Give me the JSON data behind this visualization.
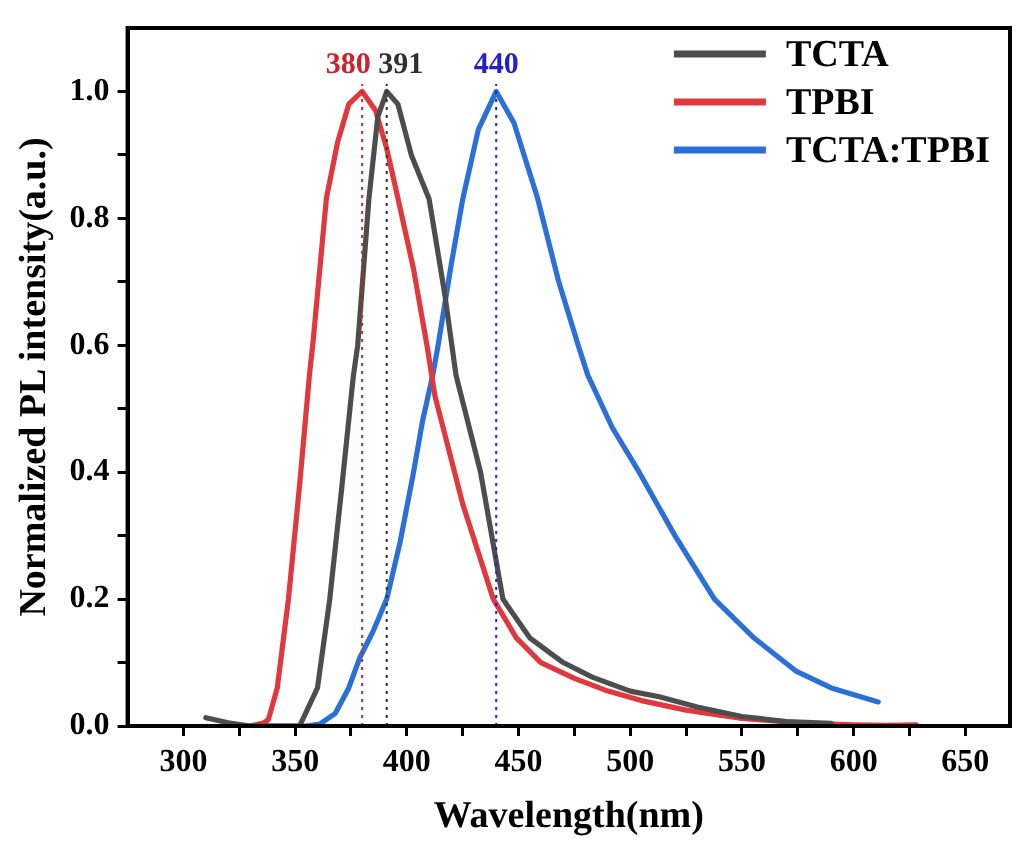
{
  "chart_data": {
    "type": "line",
    "xlabel": "Wavelength(nm)",
    "ylabel": "Normalized PL intensity(a.u.)",
    "xlim": [
      275,
      670
    ],
    "ylim": [
      0,
      1.1
    ],
    "xticks": [
      300,
      {
        "value": 325,
        "label": null
      },
      350,
      {
        "value": 375,
        "label": null
      },
      400,
      {
        "value": 425,
        "label": null
      },
      450,
      {
        "value": 475,
        "label": null
      },
      500,
      {
        "value": 525,
        "label": null
      },
      550,
      {
        "value": 575,
        "label": null
      },
      600,
      {
        "value": 625,
        "label": null
      },
      650
    ],
    "yticks": [
      {
        "value": 0,
        "label": "0.0"
      },
      {
        "value": 0.1,
        "label": null
      },
      0.2,
      {
        "value": 0.3,
        "label": null
      },
      0.4,
      {
        "value": 0.5,
        "label": null
      },
      0.6,
      {
        "value": 0.7,
        "label": null
      },
      0.8,
      {
        "value": 0.9,
        "label": null
      },
      {
        "value": 1.0,
        "label": "1.0"
      }
    ],
    "grid": false,
    "legend": "top right",
    "marker": "none",
    "line_style": "solid",
    "series": [
      {
        "name": "TCTA",
        "color": "#4d4d4d",
        "x": [
          310,
          320,
          330,
          345,
          352,
          360,
          365.5,
          371,
          376,
          378,
          383,
          387,
          391,
          396,
          402,
          410,
          417,
          422,
          433,
          443,
          455,
          470,
          483,
          500,
          513,
          530,
          550,
          570,
          590
        ],
        "values": [
          0.013,
          0.005,
          0,
          0,
          0,
          0.06,
          0.2,
          0.38,
          0.55,
          0.6,
          0.83,
          0.96,
          1.0,
          0.98,
          0.9,
          0.83,
          0.68,
          0.553,
          0.4,
          0.2,
          0.139,
          0.1,
          0.077,
          0.055,
          0.046,
          0.03,
          0.015,
          0.007,
          0.004
        ]
      },
      {
        "name": "TPBI",
        "color": "#e0383c",
        "x": [
          330,
          336,
          338,
          342,
          347,
          352,
          356.4,
          358,
          364,
          369,
          374,
          380,
          386,
          391,
          396,
          403,
          409,
          412.6,
          425,
          438.7,
          449,
          460,
          475,
          490,
          505,
          525,
          550,
          575,
          600,
          615,
          628
        ],
        "values": [
          0,
          0.005,
          0.01,
          0.06,
          0.2,
          0.38,
          0.553,
          0.605,
          0.832,
          0.92,
          0.98,
          1.0,
          0.97,
          0.91,
          0.832,
          0.72,
          0.6,
          0.52,
          0.35,
          0.2,
          0.139,
          0.1,
          0.075,
          0.055,
          0.04,
          0.025,
          0.012,
          0.005,
          0.002,
          0.001,
          0.002
        ]
      },
      {
        "name": "TCTA:TPBI",
        "color": "#2a70d8",
        "x": [
          330,
          355,
          361,
          368,
          374,
          379,
          385,
          391,
          397,
          403,
          407,
          411.6,
          414,
          420,
          425,
          432,
          440,
          448,
          458.5,
          468,
          476.7,
          481,
          492,
          504,
          520,
          537.7,
          555,
          574,
          590,
          611
        ],
        "values": [
          0,
          0,
          0.003,
          0.02,
          0.06,
          0.108,
          0.15,
          0.2,
          0.29,
          0.4,
          0.48,
          0.553,
          0.6,
          0.73,
          0.83,
          0.94,
          1.0,
          0.95,
          0.832,
          0.7,
          0.6,
          0.553,
          0.47,
          0.4,
          0.3,
          0.2,
          0.14,
          0.087,
          0.06,
          0.038
        ]
      }
    ],
    "ref_lines": [
      {
        "axis": "x",
        "value": 380,
        "label": "380",
        "color": "#d0202a",
        "line_style": "dotted"
      },
      {
        "axis": "x",
        "value": 391,
        "label": "391",
        "color": "#303030",
        "line_style": "dotted"
      },
      {
        "axis": "x",
        "value": 440,
        "label": "440",
        "color": "#2020d0",
        "line_style": "dotted"
      }
    ]
  }
}
